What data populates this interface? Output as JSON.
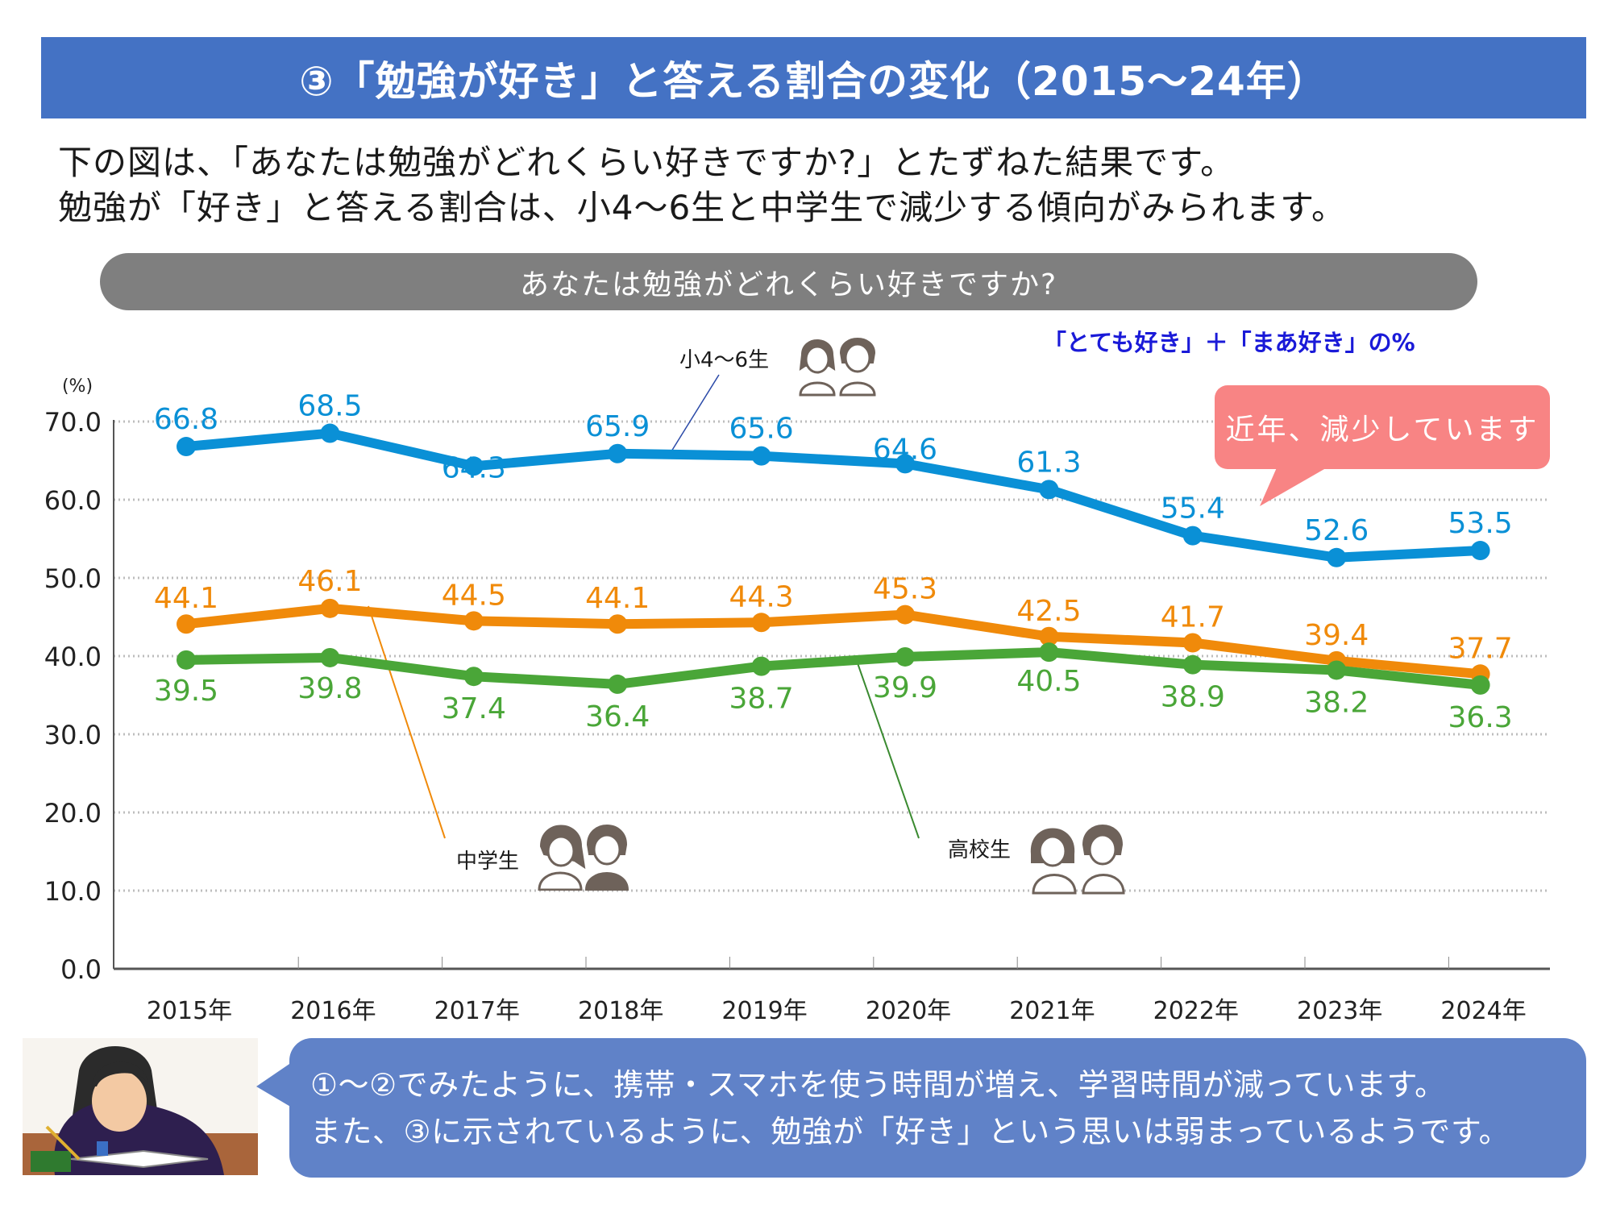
{
  "header": {
    "title": "③「勉強が好き」と答える割合の変化（2015〜24年）"
  },
  "intro": {
    "line1": "下の図は、「あなたは勉強がどれくらい好きですか?」とたずねた結果です。",
    "line2": "勉強が「好き」と答える割合は、小4〜6生と中学生で減少する傾向がみられます。"
  },
  "question": {
    "text": "あなたは勉強がどれくらい好きですか?"
  },
  "legend_note": "「とても好き」＋「まあ好き」の%",
  "callout": {
    "text": "近年、減少しています"
  },
  "series_labels": {
    "elementary": "小4〜6生",
    "junior_high": "中学生",
    "high_school": "高校生"
  },
  "icons": {
    "elementary": "elementary-students-icon",
    "junior_high": "junior-high-students-icon",
    "high_school": "high-school-students-icon",
    "student": "sleeping-student-illustration"
  },
  "colors": {
    "header": "#4472c4",
    "elementary": "#0a90d6",
    "junior_high": "#f08a0a",
    "high_school": "#4aa638",
    "callout": "#f88484",
    "bubble": "#6082c8",
    "legend_note": "#1a1ad8"
  },
  "bottom_message": {
    "line1": "①〜②でみたように、携帯・スマホを使う時間が増え、学習時間が減っています。",
    "line2": "また、③に示されているように、勉強が「好き」という思いは弱まっているようです。"
  },
  "chart_data": {
    "type": "line",
    "title": "あなたは勉強がどれくらい好きですか?",
    "ylabel": "(%)",
    "xlabel": "",
    "ylim": [
      0,
      70
    ],
    "yticks": [
      "0.0",
      "10.0",
      "20.0",
      "30.0",
      "40.0",
      "50.0",
      "60.0",
      "70.0"
    ],
    "grid": true,
    "categories": [
      "2015年",
      "2016年",
      "2017年",
      "2018年",
      "2019年",
      "2020年",
      "2021年",
      "2022年",
      "2023年",
      "2024年"
    ],
    "series": [
      {
        "name": "小4〜6生",
        "key": "elementary",
        "values": [
          66.8,
          68.5,
          64.3,
          65.9,
          65.6,
          64.6,
          61.3,
          55.4,
          52.6,
          53.5
        ],
        "label_pos": "above"
      },
      {
        "name": "中学生",
        "key": "junior_high",
        "values": [
          44.1,
          46.1,
          44.5,
          44.1,
          44.3,
          45.3,
          42.5,
          41.7,
          39.4,
          37.7
        ],
        "label_pos": "above"
      },
      {
        "name": "高校生",
        "key": "high_school",
        "values": [
          39.5,
          39.8,
          37.4,
          36.4,
          38.7,
          39.9,
          40.5,
          38.9,
          38.2,
          36.3
        ],
        "label_pos": "below"
      }
    ]
  }
}
